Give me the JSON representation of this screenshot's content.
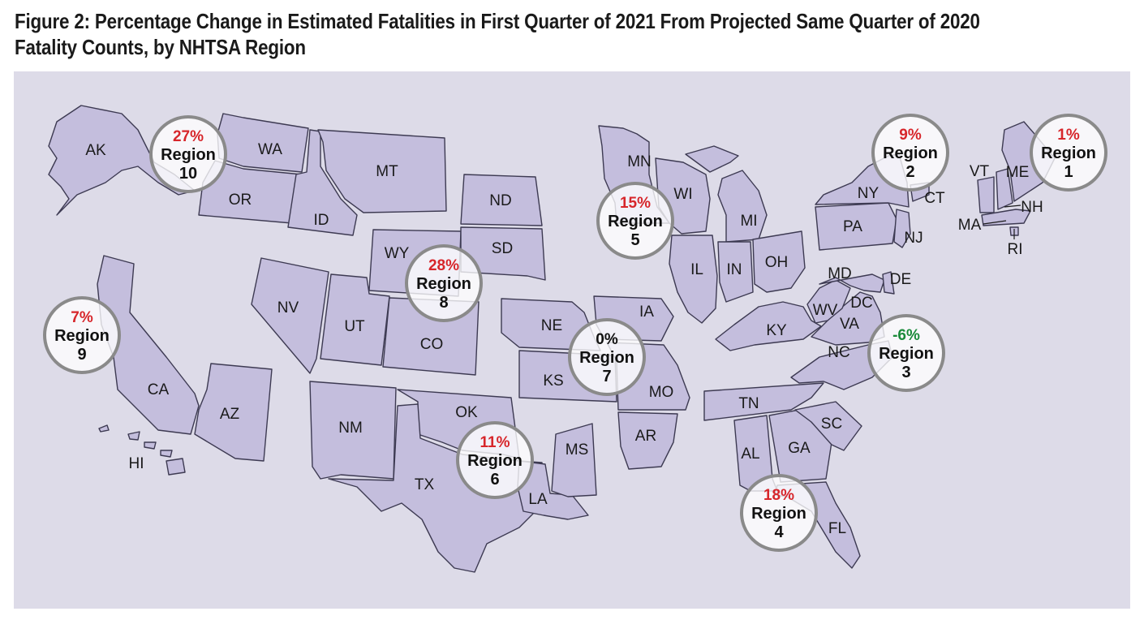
{
  "title_line1": "Figure 2: Percentage Change in Estimated Fatalities in First Quarter of 2021 From Projected Same Quarter of 2020",
  "title_line2": "Fatality Counts, by NHTSA Region",
  "colors": {
    "background": "#dddbe8",
    "state_fill": "#c4bedd",
    "positive": "#d7262b",
    "negative": "#1a8a3a",
    "neutral": "#111111"
  },
  "states": {
    "AK": "AK",
    "WA": "WA",
    "OR": "OR",
    "ID": "ID",
    "MT": "MT",
    "WY": "WY",
    "ND": "ND",
    "SD": "SD",
    "NV": "NV",
    "UT": "UT",
    "CO": "CO",
    "CA": "CA",
    "AZ": "AZ",
    "HI": "HI",
    "NM": "NM",
    "TX": "TX",
    "OK": "OK",
    "NE": "NE",
    "KS": "KS",
    "IA": "IA",
    "MO": "MO",
    "AR": "AR",
    "LA": "LA",
    "MS": "MS",
    "MN": "MN",
    "WI": "WI",
    "MI": "MI",
    "IL": "IL",
    "IN": "IN",
    "OH": "OH",
    "KY": "KY",
    "TN": "TN",
    "AL": "AL",
    "GA": "GA",
    "FL": "FL",
    "SC": "SC",
    "NC": "NC",
    "VA": "VA",
    "WV": "WV",
    "MD": "MD",
    "DE": "DE",
    "DC": "DC",
    "PA": "PA",
    "NJ": "NJ",
    "NY": "NY",
    "CT": "CT",
    "RI": "RI",
    "MA": "MA",
    "VT": "VT",
    "NH": "NH",
    "ME": "ME"
  },
  "regions": [
    {
      "value": "1%",
      "label": "Region",
      "number": "1",
      "sign": "positive"
    },
    {
      "value": "9%",
      "label": "Region",
      "number": "2",
      "sign": "positive"
    },
    {
      "value": "-6%",
      "label": "Region",
      "number": "3",
      "sign": "negative"
    },
    {
      "value": "18%",
      "label": "Region",
      "number": "4",
      "sign": "positive"
    },
    {
      "value": "15%",
      "label": "Region",
      "number": "5",
      "sign": "positive"
    },
    {
      "value": "11%",
      "label": "Region",
      "number": "6",
      "sign": "positive"
    },
    {
      "value": "0%",
      "label": "Region",
      "number": "7",
      "sign": "neutral"
    },
    {
      "value": "28%",
      "label": "Region",
      "number": "8",
      "sign": "positive"
    },
    {
      "value": "7%",
      "label": "Region",
      "number": "9",
      "sign": "positive"
    },
    {
      "value": "27%",
      "label": "Region",
      "number": "10",
      "sign": "positive"
    }
  ]
}
